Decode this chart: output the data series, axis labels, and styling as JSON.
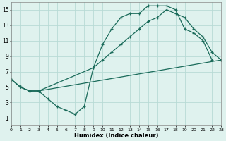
{
  "xlabel": "Humidex (Indice chaleur)",
  "bg_color": "#dff2ee",
  "grid_color": "#b8dbd5",
  "line_color": "#1a6b5a",
  "line1_x": [
    0,
    1,
    2,
    3,
    4,
    5,
    6,
    7,
    8,
    9,
    10,
    11,
    12,
    13,
    14,
    15,
    16,
    17,
    18,
    19,
    20,
    21,
    22
  ],
  "line1_y": [
    6.0,
    5.0,
    4.5,
    4.5,
    3.5,
    2.5,
    2.0,
    1.5,
    2.5,
    7.5,
    10.5,
    12.5,
    14.0,
    14.5,
    14.5,
    15.5,
    15.5,
    15.5,
    15.0,
    12.5,
    12.0,
    11.0,
    8.5
  ],
  "line2_x": [
    0,
    1,
    2,
    3,
    9,
    10,
    11,
    12,
    13,
    14,
    15,
    16,
    17,
    18,
    19,
    20,
    21,
    22,
    23
  ],
  "line2_y": [
    6.0,
    5.0,
    4.5,
    4.5,
    7.5,
    8.5,
    9.5,
    10.5,
    11.5,
    12.5,
    13.5,
    14.0,
    15.0,
    14.5,
    14.0,
    12.5,
    11.5,
    9.5,
    8.5
  ],
  "line3_x": [
    0,
    1,
    2,
    3,
    23
  ],
  "line3_y": [
    6.0,
    5.0,
    4.5,
    4.5,
    8.5
  ],
  "xlim": [
    0,
    23
  ],
  "ylim": [
    0,
    16
  ],
  "yticks": [
    1,
    3,
    5,
    7,
    9,
    11,
    13,
    15
  ],
  "xticks": [
    0,
    1,
    2,
    3,
    4,
    5,
    6,
    7,
    8,
    9,
    10,
    11,
    12,
    13,
    14,
    15,
    16,
    17,
    18,
    19,
    20,
    21,
    22,
    23
  ]
}
